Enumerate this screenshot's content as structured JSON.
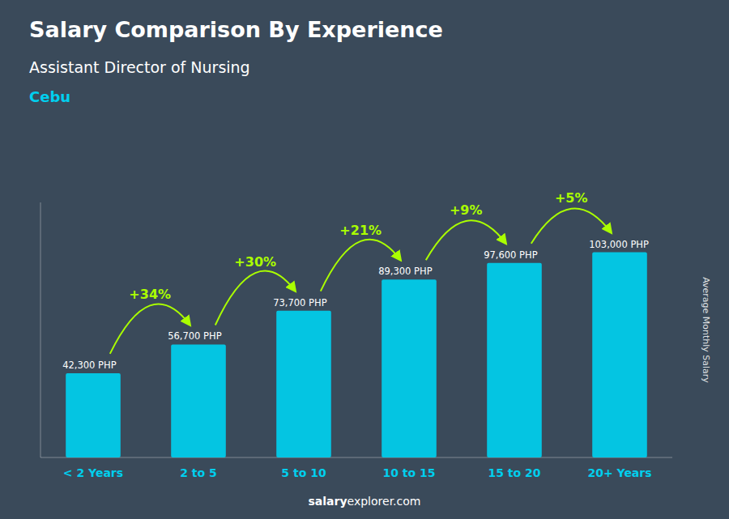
{
  "chart_data": {
    "type": "bar",
    "title": "Salary Comparison By Experience",
    "subtitle": [
      "Assistant Director of Nursing",
      "Cebu"
    ],
    "ylabel": "Average Monthly Salary",
    "categories": [
      "< 2 Years",
      "2 to 5",
      "5 to 10",
      "10 to 15",
      "15 to 20",
      "20+ Years"
    ],
    "values": [
      42300,
      56700,
      73700,
      89300,
      97600,
      103000
    ],
    "value_labels": [
      "42,300 PHP",
      "56,700 PHP",
      "73,700 PHP",
      "89,300 PHP",
      "97,600 PHP",
      "103,000 PHP"
    ],
    "data_labels": true,
    "annotations": [
      "+34%",
      "+30%",
      "+21%",
      "+9%",
      "+5%"
    ],
    "footer": [
      "salary",
      "explorer.com"
    ],
    "color": "#00CFEE",
    "ylim": [
      0,
      128000
    ],
    "tick_labels": "x",
    "grid": false
  }
}
